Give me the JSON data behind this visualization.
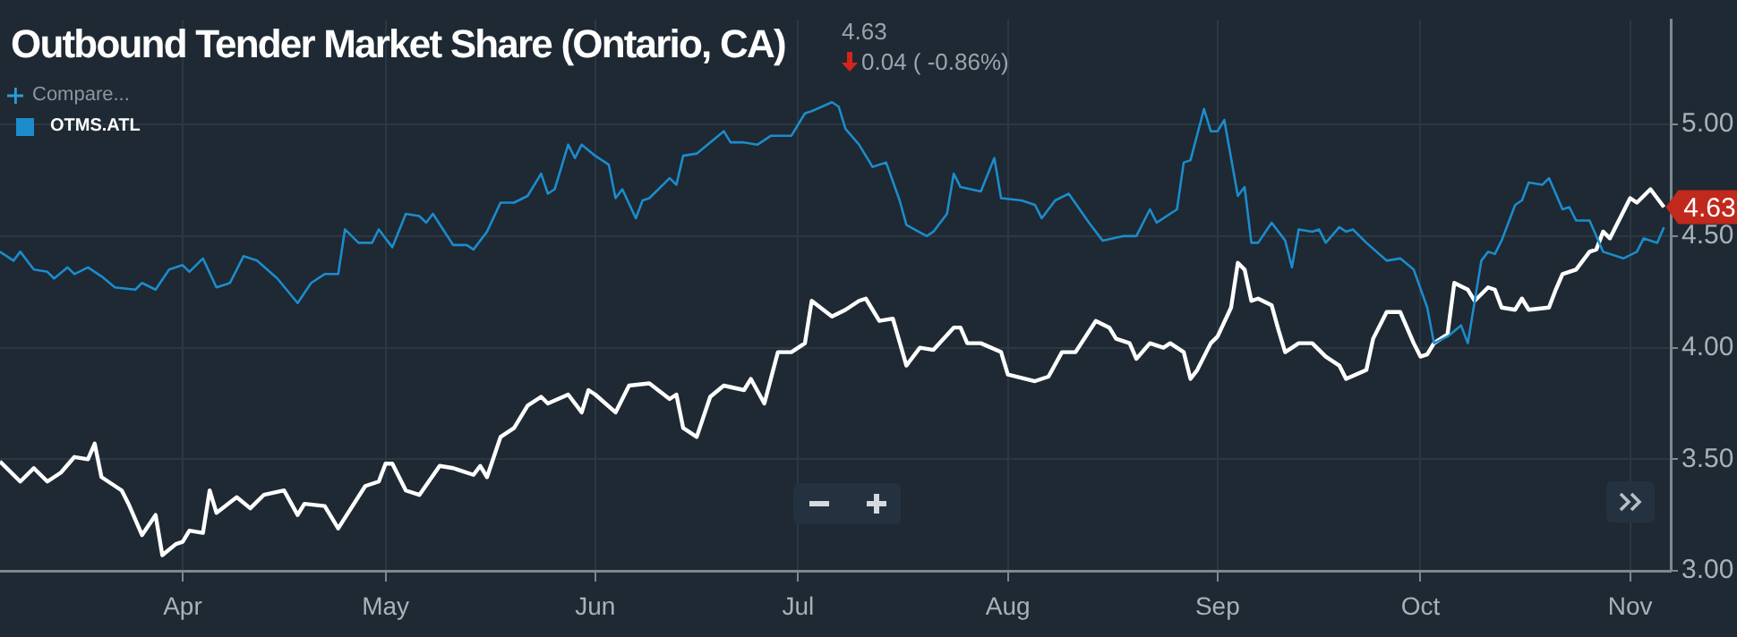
{
  "chart_data": {
    "type": "line",
    "title": "Outbound Tender Market Share (Ontario, CA)",
    "annotations": [
      "4.63",
      "0.04 ( -0.86%)",
      "Compare...",
      {
        "text": "4.63",
        "x": "--11-06",
        "y": 4.63
      }
    ],
    "xlim": [
      "--03-05",
      "--11-07"
    ],
    "xticks": [
      {
        "value": "--04-01",
        "label": "Apr"
      },
      {
        "value": "--05-01",
        "label": "May"
      },
      {
        "value": "--06-01",
        "label": "Jun"
      },
      {
        "value": "--07-01",
        "label": "Jul"
      },
      {
        "value": "--08-01",
        "label": "Aug"
      },
      {
        "value": "--09-01",
        "label": "Sep"
      },
      {
        "value": "--10-01",
        "label": "Oct"
      },
      {
        "value": "--11-01",
        "label": "Nov"
      }
    ],
    "ylim": [
      3,
      5.47
    ],
    "yticks": [
      {
        "value": 3,
        "label": "3.00"
      },
      {
        "value": 3.5,
        "label": "3.50"
      },
      {
        "value": 4,
        "label": "4.00"
      },
      {
        "value": 4.5,
        "label": "4.50"
      },
      {
        "value": 5,
        "label": "5.00"
      }
    ],
    "grid": true,
    "legend": "top left",
    "marker": "none",
    "line_style": "solid",
    "series": [
      {
        "color": "#ffffff",
        "x": [
          "--03-05",
          "--03-08",
          "--03-10",
          "--03-12",
          "--03-14",
          "--03-16",
          "--03-18",
          "--03-19",
          "--03-20",
          "--03-23",
          "--03-24",
          "--03-26",
          "--03-28",
          "--03-29",
          "--03-31",
          "--04-01",
          "--04-02",
          "--04-04",
          "--04-05",
          "--04-06",
          "--04-09",
          "--04-11",
          "--04-13",
          "--04-16",
          "--04-18",
          "--04-19",
          "--04-22",
          "--04-24",
          "--04-28",
          "--04-30",
          "--05-01",
          "--05-02",
          "--05-04",
          "--05-06",
          "--05-09",
          "--05-11",
          "--05-14",
          "--05-15",
          "--05-16",
          "--05-18",
          "--05-20",
          "--05-22",
          "--05-24",
          "--05-25",
          "--05-28",
          "--05-30",
          "--05-31",
          "--06-01",
          "--06-04",
          "--06-06",
          "--06-09",
          "--06-12",
          "--06-13",
          "--06-14",
          "--06-16",
          "--06-18",
          "--06-20",
          "--06-23",
          "--06-24",
          "--06-26",
          "--06-28",
          "--06-30",
          "--07-02",
          "--07-03",
          "--07-06",
          "--07-08",
          "--07-09",
          "--07-10",
          "--07-11",
          "--07-13",
          "--07-15",
          "--07-17",
          "--07-19",
          "--07-21",
          "--07-24",
          "--07-25",
          "--07-26",
          "--07-28",
          "--07-31",
          "--08-01",
          "--08-05",
          "--08-07",
          "--08-09",
          "--08-11",
          "--08-14",
          "--08-16",
          "--08-17",
          "--08-19",
          "--08-20",
          "--08-22",
          "--08-24",
          "--08-25",
          "--08-27",
          "--08-28",
          "--08-29",
          "--08-31",
          "--09-01",
          "--09-03",
          "--09-04",
          "--09-05",
          "--09-06",
          "--09-07",
          "--09-09",
          "--09-10",
          "--09-11",
          "--09-13",
          "--09-15",
          "--09-17",
          "--09-19",
          "--09-20",
          "--09-23",
          "--09-24",
          "--09-26",
          "--09-28",
          "--09-30",
          "--10-01",
          "--10-02",
          "--10-03",
          "--10-05",
          "--10-06",
          "--10-08",
          "--10-09",
          "--10-11",
          "--10-12",
          "--10-13",
          "--10-15",
          "--10-16",
          "--10-17",
          "--10-20",
          "--10-21",
          "--10-22",
          "--10-24",
          "--10-26",
          "--10-27",
          "--10-28",
          "--10-29",
          "--11-01",
          "--11-02",
          "--11-04",
          "--11-06"
        ],
        "values": [
          3.49,
          3.4,
          3.46,
          3.4,
          3.44,
          3.51,
          3.5,
          3.57,
          3.42,
          3.36,
          3.3,
          3.16,
          3.25,
          3.07,
          3.12,
          3.13,
          3.18,
          3.17,
          3.36,
          3.26,
          3.33,
          3.28,
          3.34,
          3.36,
          3.25,
          3.3,
          3.29,
          3.19,
          3.38,
          3.4,
          3.48,
          3.48,
          3.36,
          3.34,
          3.47,
          3.46,
          3.43,
          3.47,
          3.42,
          3.6,
          3.64,
          3.74,
          3.78,
          3.75,
          3.79,
          3.71,
          3.81,
          3.79,
          3.71,
          3.83,
          3.84,
          3.77,
          3.79,
          3.64,
          3.6,
          3.78,
          3.83,
          3.81,
          3.86,
          3.75,
          3.98,
          3.98,
          4.02,
          4.21,
          4.14,
          4.17,
          4.19,
          4.21,
          4.22,
          4.12,
          4.13,
          3.92,
          4.0,
          3.99,
          4.09,
          4.09,
          4.02,
          4.02,
          3.98,
          3.88,
          3.85,
          3.87,
          3.98,
          3.98,
          4.12,
          4.09,
          4.04,
          4.02,
          3.95,
          4.02,
          4.0,
          4.02,
          3.98,
          3.86,
          3.9,
          4.02,
          4.05,
          4.18,
          4.38,
          4.35,
          4.21,
          4.22,
          4.19,
          4.08,
          3.98,
          4.02,
          4.02,
          3.96,
          3.92,
          3.86,
          3.9,
          4.04,
          4.16,
          4.16,
          4.02,
          3.96,
          3.97,
          4.02,
          4.06,
          4.29,
          4.26,
          4.21,
          4.27,
          4.26,
          4.18,
          4.17,
          4.22,
          4.17,
          4.18,
          4.26,
          4.33,
          4.35,
          4.43,
          4.44,
          4.52,
          4.49,
          4.67,
          4.65,
          4.71,
          4.63
        ]
      },
      {
        "name": "OTMS.ATL",
        "color": "#1c8ccc",
        "x": [
          "--03-05",
          "--03-07",
          "--03-08",
          "--03-10",
          "--03-12",
          "--03-13",
          "--03-15",
          "--03-16",
          "--03-18",
          "--03-20",
          "--03-22",
          "--03-25",
          "--03-26",
          "--03-28",
          "--03-30",
          "--04-01",
          "--04-02",
          "--04-04",
          "--04-06",
          "--04-08",
          "--04-10",
          "--04-12",
          "--04-15",
          "--04-18",
          "--04-20",
          "--04-22",
          "--04-24",
          "--04-25",
          "--04-27",
          "--04-29",
          "--04-30",
          "--05-02",
          "--05-04",
          "--05-06",
          "--05-07",
          "--05-08",
          "--05-11",
          "--05-13",
          "--05-14",
          "--05-16",
          "--05-18",
          "--05-20",
          "--05-22",
          "--05-24",
          "--05-25",
          "--05-26",
          "--05-28",
          "--05-29",
          "--05-30",
          "--06-01",
          "--06-03",
          "--06-04",
          "--06-05",
          "--06-07",
          "--06-08",
          "--06-09",
          "--06-12",
          "--06-13",
          "--06-14",
          "--06-16",
          "--06-20",
          "--06-21",
          "--06-23",
          "--06-25",
          "--06-27",
          "--06-30",
          "--07-02",
          "--07-03",
          "--07-06",
          "--07-07",
          "--07-08",
          "--07-10",
          "--07-12",
          "--07-14",
          "--07-16",
          "--07-17",
          "--07-20",
          "--07-21",
          "--07-23",
          "--07-24",
          "--07-25",
          "--07-28",
          "--07-30",
          "--07-31",
          "--08-03",
          "--08-05",
          "--08-06",
          "--08-08",
          "--08-10",
          "--08-13",
          "--08-15",
          "--08-18",
          "--08-20",
          "--08-22",
          "--08-23",
          "--08-26",
          "--08-27",
          "--08-28",
          "--08-30",
          "--08-31",
          "--09-01",
          "--09-02",
          "--09-04",
          "--09-05",
          "--09-06",
          "--09-07",
          "--09-09",
          "--09-11",
          "--09-12",
          "--09-13",
          "--09-15",
          "--09-16",
          "--09-17",
          "--09-19",
          "--09-20",
          "--09-21",
          "--09-23",
          "--09-26",
          "--09-28",
          "--09-30",
          "--10-02",
          "--10-03",
          "--10-05",
          "--10-07",
          "--10-08",
          "--10-10",
          "--10-11",
          "--10-12",
          "--10-13",
          "--10-15",
          "--10-16",
          "--10-17",
          "--10-19",
          "--10-20",
          "--10-22",
          "--10-23",
          "--10-24",
          "--10-26",
          "--10-28",
          "--10-31",
          "--11-02",
          "--11-03",
          "--11-05",
          "--11-06"
        ],
        "values": [
          4.43,
          4.39,
          4.43,
          4.35,
          4.34,
          4.31,
          4.36,
          4.33,
          4.36,
          4.32,
          4.27,
          4.26,
          4.29,
          4.26,
          4.35,
          4.37,
          4.34,
          4.4,
          4.27,
          4.29,
          4.41,
          4.39,
          4.31,
          4.2,
          4.29,
          4.33,
          4.33,
          4.53,
          4.47,
          4.47,
          4.53,
          4.45,
          4.6,
          4.59,
          4.56,
          4.6,
          4.46,
          4.46,
          4.44,
          4.52,
          4.65,
          4.65,
          4.68,
          4.78,
          4.69,
          4.71,
          4.91,
          4.85,
          4.91,
          4.86,
          4.82,
          4.67,
          4.71,
          4.58,
          4.66,
          4.67,
          4.76,
          4.73,
          4.86,
          4.87,
          4.97,
          4.92,
          4.92,
          4.91,
          4.95,
          4.95,
          5.05,
          5.06,
          5.1,
          5.08,
          4.98,
          4.91,
          4.81,
          4.83,
          4.66,
          4.55,
          4.5,
          4.52,
          4.6,
          4.78,
          4.72,
          4.7,
          4.85,
          4.67,
          4.66,
          4.64,
          4.58,
          4.66,
          4.69,
          4.56,
          4.48,
          4.5,
          4.5,
          4.62,
          4.56,
          4.62,
          4.83,
          4.84,
          5.07,
          4.97,
          4.97,
          5.02,
          4.68,
          4.72,
          4.47,
          4.47,
          4.56,
          4.48,
          4.36,
          4.53,
          4.52,
          4.53,
          4.47,
          4.54,
          4.52,
          4.53,
          4.47,
          4.39,
          4.4,
          4.35,
          4.18,
          4.02,
          4.05,
          4.1,
          4.02,
          4.39,
          4.43,
          4.42,
          4.48,
          4.64,
          4.66,
          4.74,
          4.73,
          4.76,
          4.62,
          4.63,
          4.57,
          4.57,
          4.43,
          4.4,
          4.43,
          4.49,
          4.47,
          4.54
        ]
      }
    ]
  }
}
